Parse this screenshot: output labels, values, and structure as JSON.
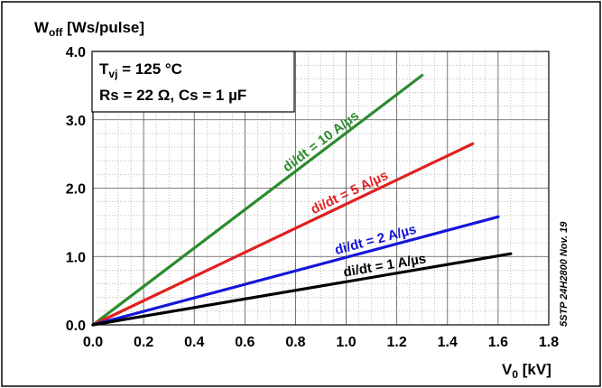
{
  "chart_data": {
    "type": "line",
    "ylabel": {
      "main": "W",
      "sub": "off",
      "rest": " [Ws/pulse]"
    },
    "xlabel": {
      "main": "V",
      "sub": "0",
      "rest": " [kV]"
    },
    "xlim": [
      0.0,
      1.8
    ],
    "ylim": [
      0.0,
      4.0
    ],
    "xticks": [
      "0.0",
      "0.2",
      "0.4",
      "0.6",
      "0.8",
      "1.0",
      "1.2",
      "1.4",
      "1.6",
      "1.8"
    ],
    "yticks": [
      "0.0",
      "1.0",
      "2.0",
      "3.0",
      "4.0"
    ],
    "grid": true,
    "conditions": {
      "line1": {
        "main": "T",
        "sub": "vj",
        "rest": " = 125 °C"
      },
      "line2": "Rs = 22 Ω, Cs = 1 µF"
    },
    "side_note": "5STP 24H2800 Nov. 19",
    "series": [
      {
        "name": "di/dt = 10 A/µs",
        "color": "#2e8b2e",
        "x": [
          0.0,
          1.3
        ],
        "y": [
          0.0,
          3.65
        ]
      },
      {
        "name": "di/dt = 5 A/µs",
        "color": "#e02020",
        "x": [
          0.0,
          1.5
        ],
        "y": [
          0.0,
          2.65
        ]
      },
      {
        "name": "di/dt = 2 A/µs",
        "color": "#1515d8",
        "x": [
          0.0,
          1.6
        ],
        "y": [
          0.0,
          1.58
        ]
      },
      {
        "name": "di/dt = 1 A/µs",
        "color": "#000000",
        "x": [
          0.0,
          1.65
        ],
        "y": [
          0.0,
          1.04
        ]
      }
    ]
  }
}
